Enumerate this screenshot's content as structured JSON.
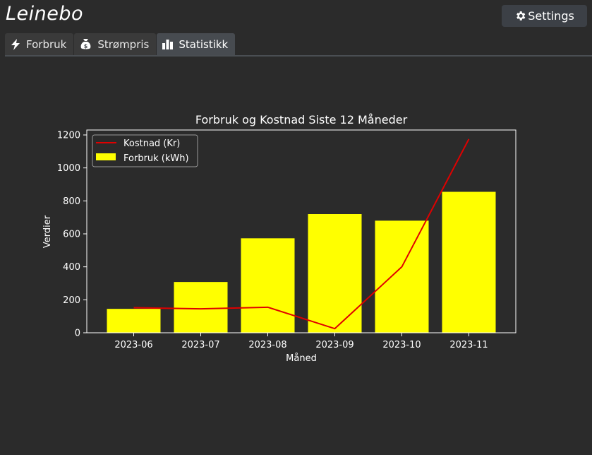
{
  "app": {
    "logo_text": "Leinebo"
  },
  "header": {
    "settings_label": "Settings"
  },
  "tabs": [
    {
      "label": "Forbruk",
      "icon": "bolt-icon",
      "active": false
    },
    {
      "label": "Strømpris",
      "icon": "money-bag-icon",
      "active": false
    },
    {
      "label": "Statistikk",
      "icon": "bar-chart-icon",
      "active": true
    }
  ],
  "colors": {
    "bar": "#ffff00",
    "line": "#e00000",
    "background": "#2b2b2b"
  },
  "chart_data": {
    "type": "bar",
    "title": "Forbruk og Kostnad Siste 12 Måneder",
    "xlabel": "Måned",
    "ylabel": "Verdier",
    "categories": [
      "2023-06",
      "2023-07",
      "2023-08",
      "2023-09",
      "2023-10",
      "2023-11"
    ],
    "ylim": [
      0,
      1230
    ],
    "yticks": [
      0,
      200,
      400,
      600,
      800,
      1000,
      1200
    ],
    "series": [
      {
        "name": "Forbruk (kWh)",
        "type": "bar",
        "color": "#ffff00",
        "values": [
          145,
          308,
          573,
          720,
          680,
          855
        ]
      },
      {
        "name": "Kostnad (Kr)",
        "type": "line",
        "color": "#e00000",
        "values": [
          152,
          145,
          155,
          25,
          400,
          1175
        ]
      }
    ],
    "legend": "upper-left",
    "grid": false
  }
}
